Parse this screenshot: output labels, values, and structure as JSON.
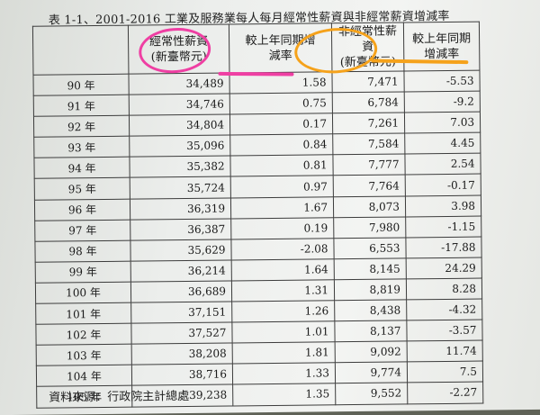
{
  "caption": "表 1-1、2001-2016 工業及服務業每人每月經常性薪資與非經常薪資增減率",
  "headers": {
    "regular_wage": "經常性薪資",
    "regular_wage_unit": "(新臺幣元)",
    "regular_change": "較上年同期增減率",
    "irregular_wage": "非經常性薪資",
    "irregular_wage_unit": "(新臺幣元)",
    "irregular_change": "較上年同期增減率"
  },
  "rows": [
    {
      "year": "90 年",
      "regular": "34,489",
      "regular_rate": "1.58",
      "irregular": "7,471",
      "irregular_rate": "-5.53"
    },
    {
      "year": "91 年",
      "regular": "34,746",
      "regular_rate": "0.75",
      "irregular": "6,784",
      "irregular_rate": "-9.2"
    },
    {
      "year": "92 年",
      "regular": "34,804",
      "regular_rate": "0.17",
      "irregular": "7,261",
      "irregular_rate": "7.03"
    },
    {
      "year": "93 年",
      "regular": "35,096",
      "regular_rate": "0.84",
      "irregular": "7,584",
      "irregular_rate": "4.45"
    },
    {
      "year": "94 年",
      "regular": "35,382",
      "regular_rate": "0.81",
      "irregular": "7,777",
      "irregular_rate": "2.54"
    },
    {
      "year": "95 年",
      "regular": "35,724",
      "regular_rate": "0.97",
      "irregular": "7,764",
      "irregular_rate": "-0.17"
    },
    {
      "year": "96 年",
      "regular": "36,319",
      "regular_rate": "1.67",
      "irregular": "8,073",
      "irregular_rate": "3.98"
    },
    {
      "year": "97 年",
      "regular": "36,387",
      "regular_rate": "0.19",
      "irregular": "7,980",
      "irregular_rate": "-1.15"
    },
    {
      "year": "98 年",
      "regular": "35,629",
      "regular_rate": "-2.08",
      "irregular": "6,553",
      "irregular_rate": "-17.88"
    },
    {
      "year": "99 年",
      "regular": "36,214",
      "regular_rate": "1.64",
      "irregular": "8,145",
      "irregular_rate": "24.29"
    },
    {
      "year": "100 年",
      "regular": "36,689",
      "regular_rate": "1.31",
      "irregular": "8,819",
      "irregular_rate": "8.28"
    },
    {
      "year": "101 年",
      "regular": "37,151",
      "regular_rate": "1.26",
      "irregular": "8,438",
      "irregular_rate": "-4.32"
    },
    {
      "year": "102 年",
      "regular": "37,527",
      "regular_rate": "1.01",
      "irregular": "8,137",
      "irregular_rate": "-3.57"
    },
    {
      "year": "103 年",
      "regular": "38,208",
      "regular_rate": "1.81",
      "irregular": "9,092",
      "irregular_rate": "11.74"
    },
    {
      "year": "104 年",
      "regular": "38,716",
      "regular_rate": "1.33",
      "irregular": "9,774",
      "irregular_rate": "7.5"
    },
    {
      "year": "105 年",
      "regular": "39,238",
      "regular_rate": "1.35",
      "irregular": "9,552",
      "irregular_rate": "-2.27"
    }
  ],
  "source": "資料來源：行政院主計總處",
  "colors": {
    "pink_highlight": "#ef3fa3",
    "orange_highlight": "#f5a21b",
    "grid_line": "#3c3c3c"
  }
}
